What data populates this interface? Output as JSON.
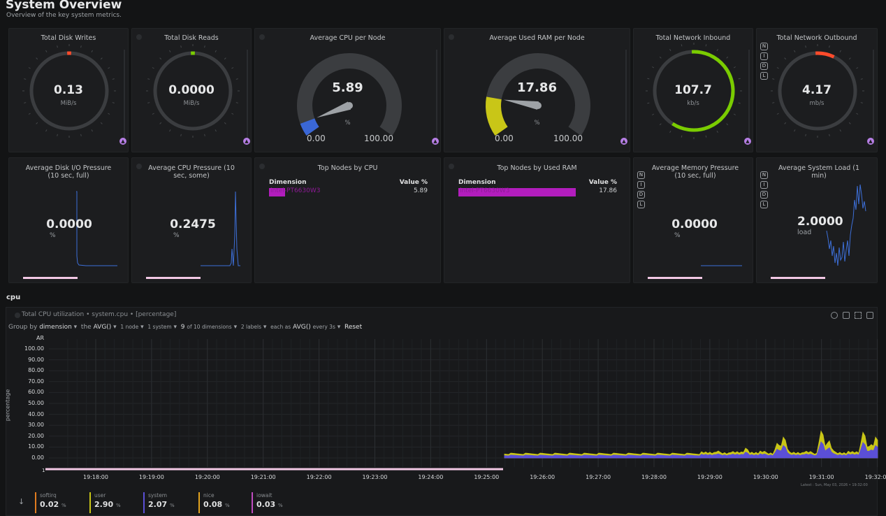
{
  "header": {
    "title": "System Overview",
    "subtitle": "Overview of the key system metrics."
  },
  "gauges": [
    {
      "title": "Total Disk Writes",
      "value": "0.13",
      "unit": "MiB/s",
      "fraction": 0.0,
      "color": "#ff4b2b"
    },
    {
      "title": "Total Disk Reads",
      "value": "0.0000",
      "unit": "MiB/s",
      "fraction": 0.0,
      "color": "#7acc00"
    },
    {
      "title": "Total Network Inbound",
      "value": "107.7",
      "unit": "kb/s",
      "fraction": 0.6,
      "color": "#7acc00"
    },
    {
      "title": "Total Network Outbound",
      "value": "4.17",
      "unit": "mb/s",
      "fraction": 0.08,
      "color": "#ff4b2b"
    }
  ],
  "speedo": [
    {
      "title": "Average CPU per Node",
      "value": "5.89",
      "unit": "%",
      "min": "0.00",
      "max": "100.00",
      "fraction": 0.0589,
      "color": "#3a67d6"
    },
    {
      "title": "Average Used RAM per Node",
      "value": "17.86",
      "unit": "%",
      "min": "0.00",
      "max": "100.00",
      "fraction": 0.1786,
      "color": "#c9c617"
    }
  ],
  "pressure": [
    {
      "title": "Average Disk I/O Pressure (10 sec, full)",
      "value": "0.0000",
      "unit": "%"
    },
    {
      "title": "Average CPU Pressure (10 sec, some)",
      "value": "0.2475",
      "unit": "%"
    },
    {
      "title": "Average Memory Pressure (10 sec, full)",
      "value": "0.0000",
      "unit": "%"
    },
    {
      "title": "Average System Load (1 min)",
      "value": "2.0000",
      "unit": "load"
    }
  ],
  "nidl": [
    "N",
    "I",
    "D",
    "L"
  ],
  "top_cpu": {
    "title": "Top Nodes by CPU",
    "col_dim": "Dimension",
    "col_val": "Value %",
    "row_name": "intel-PT6630W3",
    "row_value": "5.89"
  },
  "top_ram": {
    "title": "Top Nodes by Used RAM",
    "col_dim": "Dimension",
    "col_val": "Value %",
    "row_name": "intel-PT6630W3",
    "row_value": "17.86"
  },
  "section": "cpu",
  "cpu_chart": {
    "title": "Total CPU utilization • system.cpu • [percentage]",
    "toolbar": {
      "group_by": "Group by",
      "group_val": "dimension",
      "the": "the",
      "agg": "AVG()",
      "nodes": "1 node",
      "system": "1 system",
      "dims_a": "9",
      "dims_b": "of 10 dimensions",
      "labels": "2 labels",
      "each_as": "each as",
      "each_agg": "AVG()",
      "every": "every 3s",
      "reset": "Reset"
    },
    "ar_label": "AR",
    "ylabel": "percentage",
    "last_point": "1",
    "timestamp": "Latest : Sun, May 03, 2026 • 19:32:00",
    "y_ticks": [
      "100.00",
      "90.00",
      "80.00",
      "70.00",
      "60.00",
      "50.00",
      "40.00",
      "30.00",
      "20.00",
      "10.00",
      "0.00"
    ],
    "x_ticks": [
      "19:18:00",
      "19:19:00",
      "19:20:00",
      "19:21:00",
      "19:22:00",
      "19:23:00",
      "19:24:00",
      "19:25:00",
      "19:26:00",
      "19:27:00",
      "19:28:00",
      "19:29:00",
      "19:30:00",
      "19:31:00",
      "19:32:00"
    ],
    "legend": [
      {
        "name": "softirq",
        "value": "0.02",
        "unit": "%",
        "color": "#e07b1f"
      },
      {
        "name": "user",
        "value": "2.90",
        "unit": "%",
        "color": "#c9c617"
      },
      {
        "name": "system",
        "value": "2.07",
        "unit": "%",
        "color": "#5b4fd6"
      },
      {
        "name": "nice",
        "value": "0.08",
        "unit": "%",
        "color": "#e3a31e"
      },
      {
        "name": "iowait",
        "value": "0.03",
        "unit": "%",
        "color": "#c04bc0"
      }
    ]
  }
}
